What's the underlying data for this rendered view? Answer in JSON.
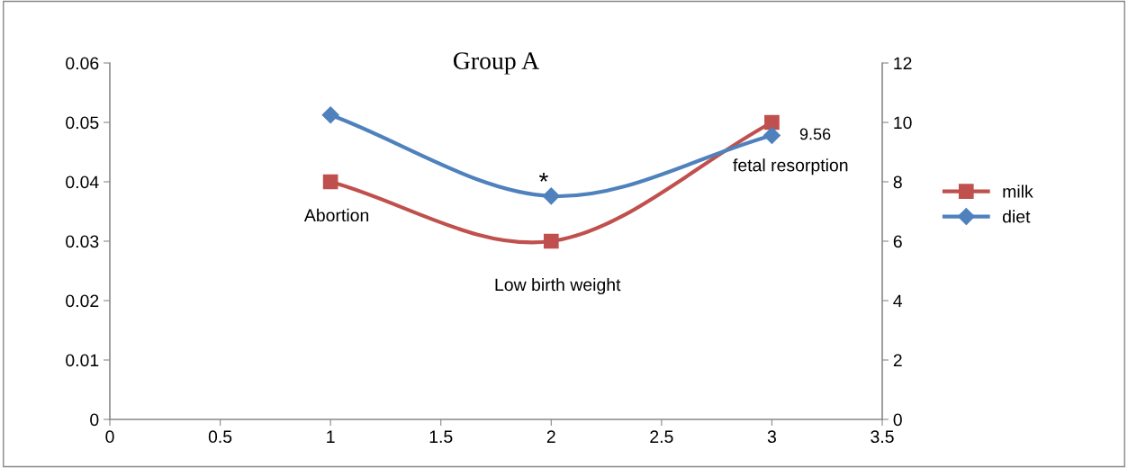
{
  "chart_data": {
    "type": "line",
    "title": "Group A",
    "x": [
      1,
      2,
      3
    ],
    "series": [
      {
        "name": "milk",
        "color": "#c0504d",
        "values": [
          0.04,
          0.03,
          0.05
        ],
        "marker": "square"
      },
      {
        "name": "diet",
        "color": "#4f81bd",
        "values": [
          10.25,
          7.52,
          9.56
        ],
        "axis": "y2",
        "marker": "diamond",
        "value_labels": [
          null,
          null,
          "9.56"
        ]
      }
    ],
    "xlim": [
      0,
      3.5
    ],
    "xticks": [
      0,
      0.5,
      1,
      1.5,
      2,
      2.5,
      3,
      3.5
    ],
    "ylim": [
      0,
      0.06
    ],
    "yticks": [
      0,
      0.01,
      0.02,
      0.03,
      0.04,
      0.05,
      0.06
    ],
    "y2lim": [
      0,
      12
    ],
    "y2ticks": [
      0,
      2,
      4,
      6,
      8,
      10,
      12
    ],
    "annotations": [
      {
        "text": "Abortion",
        "x": 1,
        "y": 0.04
      },
      {
        "text": "*",
        "x": 2,
        "y": 0.0376
      },
      {
        "text": "Low birth weight",
        "x": 2,
        "y": 0.03
      },
      {
        "text": "fetal resorption",
        "x": 3,
        "y": 0.0478
      }
    ],
    "grid": false,
    "legend": "right",
    "line_style": "solid"
  }
}
